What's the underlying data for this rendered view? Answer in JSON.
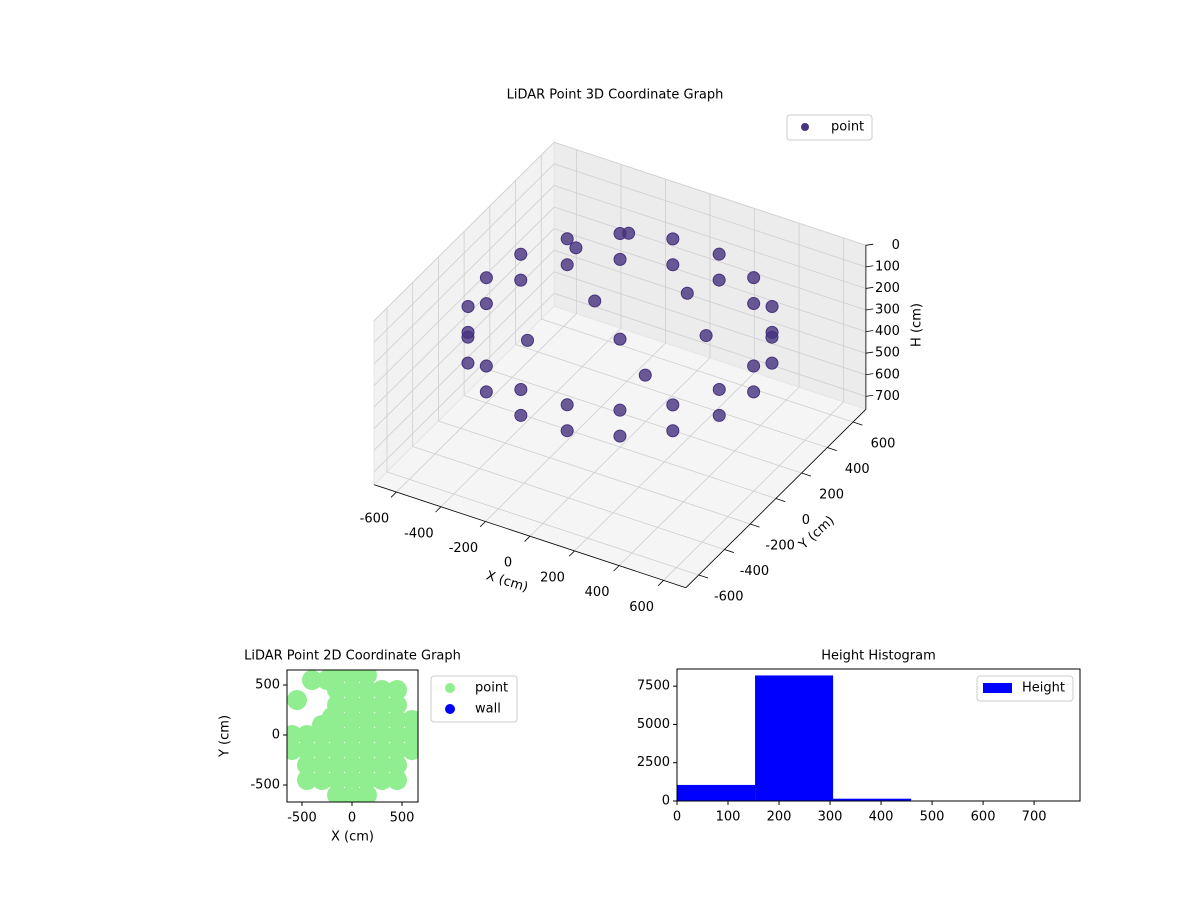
{
  "chart_data": [
    {
      "type": "scatter3d",
      "title": "LiDAR Point 3D Coordinate Graph",
      "xlabel": "X (cm)",
      "ylabel": "Y (cm)",
      "zlabel": "H (cm)",
      "xlim": [
        -700,
        700
      ],
      "ylim": [
        -700,
        700
      ],
      "zlim": [
        0,
        760
      ],
      "z_inverted": true,
      "xticks": [
        -600,
        -400,
        -200,
        0,
        200,
        400,
        600
      ],
      "yticks": [
        -600,
        -400,
        -200,
        0,
        200,
        400,
        600
      ],
      "zticks": [
        0,
        100,
        200,
        300,
        400,
        500,
        600,
        700
      ],
      "grid": true,
      "legend": "upper right",
      "series": [
        {
          "name": "point",
          "color": "#46327e",
          "x": [
            600,
            600,
            564,
            564,
            460,
            460,
            300,
            300,
            104,
            104,
            -104,
            -104,
            -300,
            -300,
            -460,
            -460,
            -564,
            -564,
            -600,
            -600,
            -564,
            -564,
            -460,
            -460,
            -300,
            -300,
            -104,
            -104,
            104,
            104,
            300,
            300,
            460,
            460,
            564,
            564,
            0,
            -200,
            200,
            100,
            -300,
            -400,
            -250,
            300
          ],
          "y": [
            0,
            0,
            205,
            205,
            386,
            386,
            520,
            520,
            591,
            591,
            591,
            591,
            520,
            520,
            386,
            386,
            205,
            205,
            0,
            0,
            -205,
            -205,
            -386,
            -386,
            -520,
            -520,
            -591,
            -591,
            -591,
            -591,
            -520,
            -520,
            -386,
            -386,
            -205,
            -205,
            0,
            150,
            -150,
            350,
            -200,
            350,
            500,
            150
          ],
          "z": [
            180,
            300,
            180,
            300,
            180,
            300,
            180,
            300,
            180,
            300,
            180,
            300,
            180,
            300,
            180,
            300,
            180,
            300,
            180,
            300,
            180,
            300,
            180,
            300,
            180,
            300,
            180,
            300,
            180,
            300,
            180,
            300,
            180,
            300,
            180,
            300,
            260,
            240,
            270,
            220,
            250,
            180,
            150,
            230
          ]
        }
      ]
    },
    {
      "type": "scatter",
      "title": "LiDAR Point 2D Coordinate Graph",
      "xlabel": "X (cm)",
      "ylabel": "Y (cm)",
      "xlim": [
        -650,
        660
      ],
      "ylim": [
        -670,
        650
      ],
      "xticks": [
        -500,
        0,
        500
      ],
      "yticks": [
        -500,
        0,
        500
      ],
      "legend": "outside right",
      "series": [
        {
          "name": "point",
          "color": "#90ee90",
          "x": [
            -150,
            0,
            150,
            -150,
            0,
            150,
            300,
            450,
            -150,
            0,
            150,
            300,
            450,
            -150,
            0,
            150,
            300,
            450,
            600,
            -600,
            -450,
            -300,
            -150,
            0,
            150,
            300,
            450,
            600,
            -600,
            -450,
            -300,
            -150,
            0,
            150,
            300,
            450,
            600,
            -450,
            -300,
            -150,
            0,
            150,
            300,
            450,
            -450,
            -300,
            -150,
            0,
            150,
            300,
            450,
            -150,
            0,
            150,
            -550,
            -400,
            -300,
            -200,
            -250
          ],
          "y": [
            600,
            600,
            600,
            450,
            450,
            450,
            450,
            450,
            300,
            300,
            300,
            300,
            300,
            150,
            150,
            150,
            150,
            150,
            150,
            0,
            0,
            0,
            0,
            0,
            0,
            0,
            0,
            0,
            -150,
            -150,
            -150,
            -150,
            -150,
            -150,
            -150,
            -150,
            -150,
            -300,
            -300,
            -300,
            -300,
            -300,
            -300,
            -300,
            -450,
            -450,
            -450,
            -450,
            -450,
            -450,
            -450,
            -600,
            -600,
            -600,
            350,
            550,
            100,
            180,
            550
          ]
        },
        {
          "name": "wall",
          "color": "#0000ff",
          "x": [],
          "y": []
        }
      ]
    },
    {
      "type": "histogram",
      "title": "Height Histogram",
      "label": "Height",
      "color": "#0000ff",
      "bins": [
        0,
        153,
        306,
        459,
        612,
        765
      ],
      "values": [
        1050,
        8200,
        150,
        30,
        5
      ],
      "xlim": [
        0,
        790
      ],
      "ylim": [
        0,
        8620
      ],
      "xticks": [
        0,
        100,
        200,
        300,
        400,
        500,
        600,
        700
      ],
      "yticks": [
        0,
        2500,
        5000,
        7500
      ],
      "legend": "upper right"
    }
  ]
}
